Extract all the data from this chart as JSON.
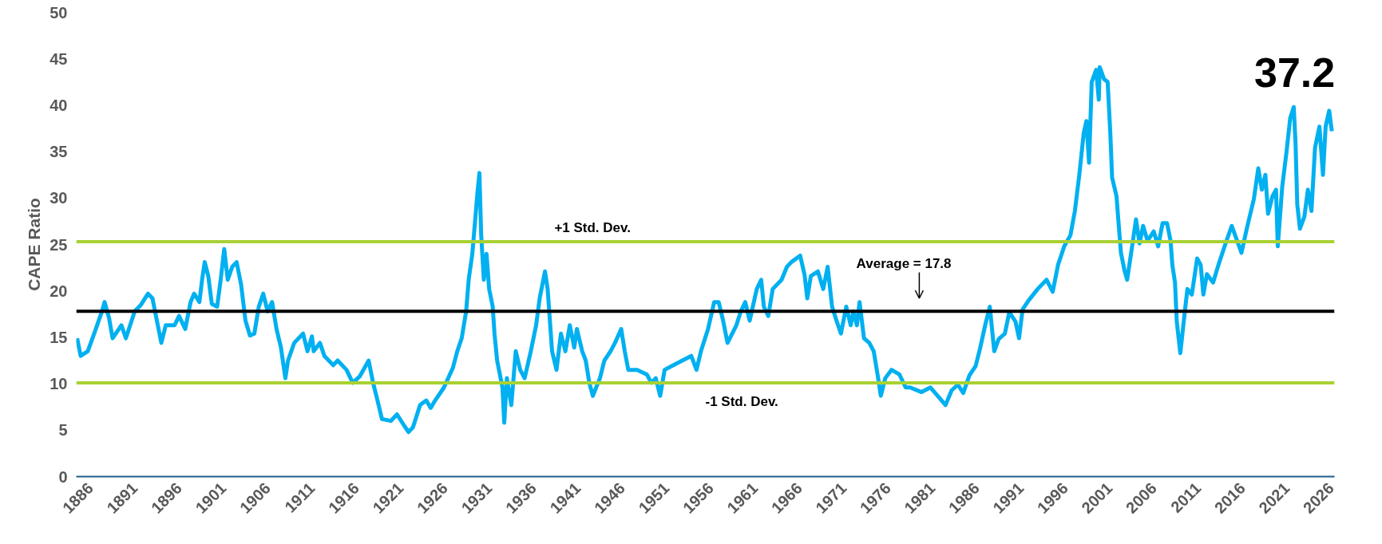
{
  "chart_data": {
    "type": "line",
    "ylabel": "CAPE Ratio",
    "x": [
      1884.5,
      1884.9,
      1885.7,
      1886.5,
      1887.3,
      1887.6,
      1888.1,
      1888.5,
      1889.5,
      1890.0,
      1891.0,
      1891.7,
      1892.5,
      1893.0,
      1893.5,
      1894.0,
      1894.5,
      1895.5,
      1896.0,
      1896.7,
      1897.3,
      1897.7,
      1898.3,
      1898.6,
      1898.9,
      1899.3,
      1899.7,
      1900.3,
      1900.7,
      1901.1,
      1901.5,
      1902.0,
      1902.5,
      1903.0,
      1903.5,
      1904.0,
      1904.5,
      1905.0,
      1905.5,
      1906.0,
      1906.5,
      1907.0,
      1907.5,
      1908.0,
      1908.3,
      1909.0,
      1910.0,
      1910.5,
      1911.0,
      1911.2,
      1911.9,
      1912.4,
      1913.4,
      1913.9,
      1914.9,
      1915.6,
      1916.4,
      1917.4,
      1917.9,
      1918.4,
      1918.9,
      1919.9,
      1920.6,
      1921.4,
      1921.9,
      1922.4,
      1923.2,
      1923.9,
      1924.4,
      1924.9,
      1925.9,
      1926.9,
      1927.4,
      1927.9,
      1928.4,
      1928.7,
      1929.1,
      1929.4,
      1929.7,
      1929.9,
      1930.1,
      1930.4,
      1930.7,
      1931.0,
      1931.4,
      1931.6,
      1931.9,
      1932.5,
      1932.7,
      1933.0,
      1933.5,
      1934.0,
      1934.5,
      1935.0,
      1935.7,
      1936.3,
      1936.7,
      1937.3,
      1937.6,
      1938.1,
      1938.6,
      1939.1,
      1939.6,
      1940.1,
      1940.6,
      1940.9,
      1941.5,
      1941.9,
      1942.3,
      1942.7,
      1943.5,
      1944.0,
      1944.7,
      1945.2,
      1945.9,
      1946.3,
      1946.7,
      1947.7,
      1948.8,
      1949.3,
      1949.8,
      1950.3,
      1950.8,
      1951.8,
      1952.8,
      1953.8,
      1954.4,
      1954.9,
      1955.7,
      1956.4,
      1956.9,
      1957.4,
      1957.9,
      1958.9,
      1959.4,
      1959.9,
      1960.4,
      1961.2,
      1961.7,
      1962.0,
      1962.5,
      1963.0,
      1964.0,
      1964.6,
      1965.1,
      1966.1,
      1966.6,
      1966.9,
      1967.3,
      1968.1,
      1968.7,
      1969.2,
      1969.7,
      1970.2,
      1970.7,
      1971.3,
      1971.8,
      1972.1,
      1972.5,
      1972.8,
      1973.3,
      1973.9,
      1974.4,
      1974.9,
      1975.2,
      1975.7,
      1976.4,
      1977.3,
      1978.0,
      1978.5,
      1979.8,
      1980.8,
      1981.7,
      1982.5,
      1983.2,
      1983.9,
      1984.5,
      1985.2,
      1985.9,
      1986.4,
      1987.0,
      1987.5,
      1988.0,
      1988.5,
      1989.2,
      1989.7,
      1990.4,
      1990.8,
      1991.2,
      1991.9,
      1992.9,
      1993.9,
      1994.6,
      1995.2,
      1995.9,
      1996.6,
      1997.1,
      1997.6,
      1998.1,
      1998.4,
      1998.7,
      1999.0,
      1999.5,
      1999.8,
      1999.9,
      2000.4,
      2000.8,
      2001.1,
      2001.3,
      2001.8,
      2002.0,
      2002.3,
      2002.7,
      2003.0,
      2003.5,
      2004.0,
      2004.4,
      2004.8,
      2005.3,
      2006.0,
      2006.5,
      2007.0,
      2007.5,
      2007.9,
      2008.1,
      2008.4,
      2008.6,
      2009.0,
      2009.5,
      2009.8,
      2010.3,
      2010.9,
      2011.3,
      2011.6,
      2012.0,
      2012.7,
      2013.3,
      2014.0,
      2014.8,
      2015.3,
      2015.9,
      2016.5,
      2017.3,
      2017.8,
      2018.2,
      2018.6,
      2018.9,
      2019.4,
      2019.8,
      2020.0,
      2020.5,
      2021.0,
      2021.4,
      2021.8,
      2022.0,
      2022.2,
      2022.5,
      2023.0,
      2023.4,
      2023.8,
      2024.2,
      2024.7,
      2025.1,
      2025.4,
      2025.8,
      2026.1
    ],
    "series": [
      {
        "color": "#00b0f0",
        "values": [
          14.9,
          13,
          13.5,
          15.6,
          17.8,
          18.8,
          17.1,
          14.9,
          16.3,
          14.9,
          17.8,
          18.5,
          19.7,
          19.2,
          16.8,
          14.4,
          16.3,
          16.3,
          17.3,
          15.9,
          18.8,
          19.7,
          18.8,
          21.2,
          23.1,
          21.6,
          18.6,
          18.3,
          21.2,
          24.5,
          21.2,
          22.6,
          23.1,
          20.7,
          16.8,
          15.2,
          15.4,
          18.3,
          19.7,
          17.8,
          18.8,
          15.9,
          13.9,
          10.6,
          12.5,
          14.4,
          15.4,
          13.5,
          15.1,
          13.5,
          14.4,
          13,
          12,
          12.5,
          11.5,
          10.1,
          10.8,
          12.5,
          10.1,
          8.2,
          6.2,
          6,
          6.7,
          5.5,
          4.8,
          5.3,
          7.7,
          8.2,
          7.4,
          8.2,
          9.6,
          11.7,
          13.5,
          14.9,
          17.8,
          21.3,
          24,
          27.4,
          30.8,
          32.7,
          26,
          21.2,
          24,
          20.2,
          18.3,
          15.4,
          12.5,
          9.6,
          5.8,
          10.6,
          7.7,
          13.5,
          11.5,
          10.6,
          13.5,
          16.3,
          19.2,
          22.1,
          20.2,
          13.5,
          11.5,
          15.4,
          13.5,
          16.3,
          13.9,
          15.9,
          13.5,
          12.5,
          10.1,
          8.7,
          10.6,
          12.5,
          13.5,
          14.4,
          15.9,
          13.5,
          11.5,
          11.5,
          11,
          10.1,
          10.6,
          8.7,
          11.5,
          12,
          12.5,
          13,
          11.5,
          13.5,
          15.9,
          18.8,
          18.8,
          16.8,
          14.4,
          16.3,
          17.8,
          18.8,
          16.8,
          20.2,
          21.2,
          18.3,
          17.3,
          20.2,
          21.2,
          22.6,
          23.1,
          23.8,
          21.7,
          19.2,
          21.6,
          22.1,
          20.2,
          22.6,
          18.3,
          16.8,
          15.4,
          18.3,
          16.3,
          17.8,
          16.3,
          18.8,
          14.9,
          14.4,
          13.5,
          10.6,
          8.7,
          10.6,
          11.5,
          11,
          9.6,
          9.6,
          9.1,
          9.6,
          8.6,
          7.7,
          9.3,
          9.9,
          9,
          10.9,
          11.9,
          13.8,
          16.4,
          18.3,
          13.5,
          14.8,
          15.4,
          17.7,
          16.7,
          14.9,
          18,
          19,
          20.2,
          21.2,
          19.9,
          22.8,
          24.8,
          26,
          28.6,
          32.5,
          37,
          38.3,
          33.8,
          42.5,
          43.8,
          40.6,
          44.1,
          42.8,
          42.5,
          37,
          32.2,
          30.2,
          27.7,
          24.1,
          22.2,
          21.2,
          24.4,
          27.7,
          25.1,
          27,
          25.4,
          26.4,
          24.8,
          27.3,
          27.3,
          25.4,
          22.8,
          20.9,
          16.7,
          13.3,
          17.7,
          20.2,
          19.6,
          23.5,
          22.8,
          19.6,
          21.8,
          20.9,
          22.8,
          24.8,
          27,
          25.7,
          24.1,
          26.7,
          29.9,
          33.2,
          30.9,
          32.5,
          28.3,
          30.2,
          30.9,
          24.8,
          31.2,
          35.1,
          38.6,
          39.8,
          36,
          29.3,
          26.7,
          28,
          30.9,
          28.6,
          35.4,
          37.7,
          32.5,
          37.7,
          39.4,
          37.2
        ]
      }
    ],
    "xlim": [
      1884.4,
      2026.4
    ],
    "xticks": [
      1886,
      1891,
      1896,
      1901,
      1906,
      1911,
      1916,
      1921,
      1926,
      1931,
      1936,
      1941,
      1946,
      1951,
      1956,
      1961,
      1966,
      1971,
      1976,
      1981,
      1986,
      1991,
      1996,
      2001,
      2006,
      2011,
      2016,
      2021,
      2026
    ],
    "ylim": [
      0,
      50
    ],
    "yticks": [
      0,
      5,
      10,
      15,
      20,
      25,
      30,
      35,
      40,
      45,
      50
    ],
    "ref_lines": [
      {
        "axis": "y",
        "value": 25.3,
        "label": "+1 Std. Dev.",
        "color": "#a9d134"
      },
      {
        "axis": "y",
        "value": 17.8,
        "label": "Average = 17.8",
        "color": "#000000"
      },
      {
        "axis": "y",
        "value": 10.1,
        "label": "-1 Std. Dev.",
        "color": "#a9d134"
      }
    ],
    "annotations": [
      {
        "text": "37.2",
        "x": 2026.1,
        "y": 37.2
      }
    ],
    "grid": false,
    "marker": "none",
    "line_style": "solid"
  }
}
